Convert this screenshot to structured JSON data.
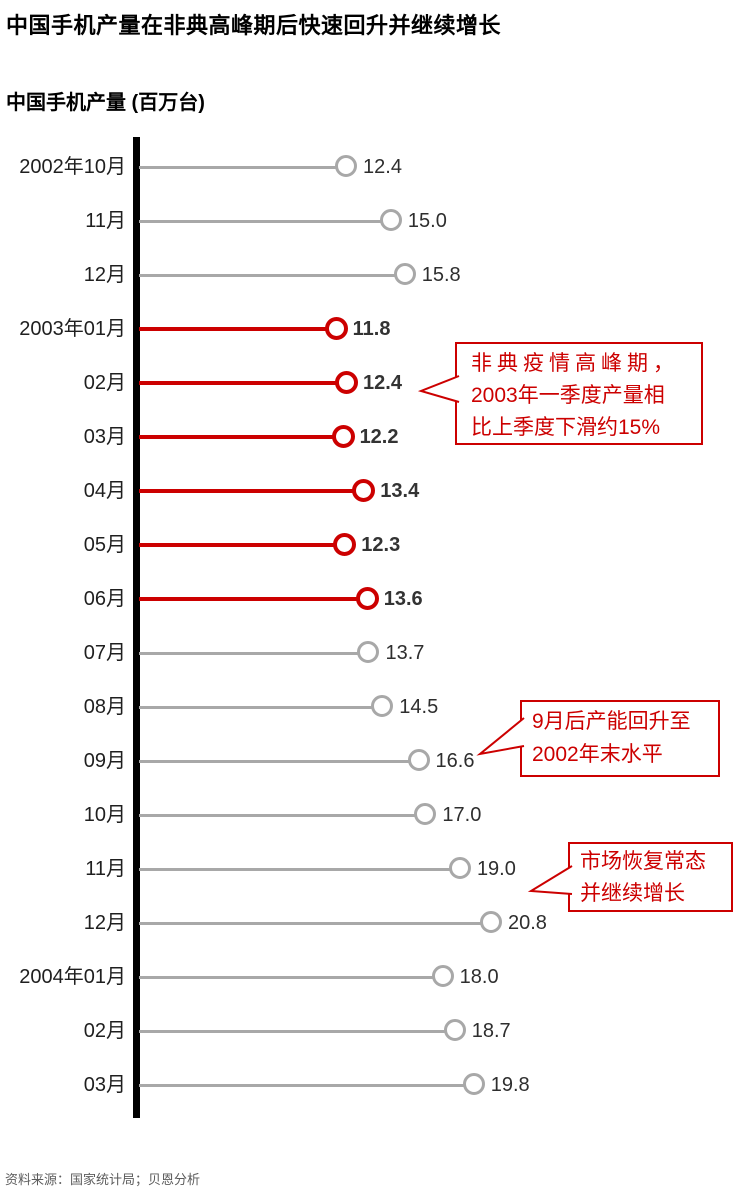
{
  "title": "中国手机产量在非典高峰期后快速回升并继续增长",
  "subtitle": "中国手机产量 (百万台)",
  "source": "资料来源：国家统计局；贝恩分析",
  "colors": {
    "highlight": "#cc0000",
    "normal": "#a8a8a8",
    "axis": "#000000",
    "value_text": "#2e2e2e"
  },
  "annotations": [
    {
      "name": "sars-peak",
      "lines": [
        "非典疫情高峰期，",
        "2003年一季度产量相",
        "比上季度下滑约15%"
      ]
    },
    {
      "name": "capacity-recovery",
      "lines": [
        "9月后产能回升至",
        "2002年末水平"
      ]
    },
    {
      "name": "continued-growth",
      "lines": [
        "市场恢复常态",
        "并继续增长"
      ]
    }
  ],
  "chart_data": {
    "type": "bar",
    "subtype": "horizontal-lollipop",
    "title": "中国手机产量在非典高峰期后快速回升并继续增长",
    "ylabel": "中国手机产量 (百万台)",
    "unit": "百万台",
    "xlim": [
      0,
      22
    ],
    "grid": false,
    "categories": [
      "2002年10月",
      "11月",
      "12月",
      "2003年01月",
      "02月",
      "03月",
      "04月",
      "05月",
      "06月",
      "07月",
      "08月",
      "09月",
      "10月",
      "11月",
      "12月",
      "2004年01月",
      "02月",
      "03月"
    ],
    "values": [
      12.4,
      15.0,
      15.8,
      11.8,
      12.4,
      12.2,
      13.4,
      12.3,
      13.6,
      13.7,
      14.5,
      16.6,
      17.0,
      19.0,
      20.8,
      18.0,
      18.7,
      19.8
    ],
    "highlighted": [
      false,
      false,
      false,
      true,
      true,
      true,
      true,
      true,
      true,
      false,
      false,
      false,
      false,
      false,
      false,
      false,
      false,
      false
    ],
    "highlight_meaning": "非典疫情高峰期 (SARS peak months, red)",
    "annotations": [
      {
        "text": "非典疫情高峰期，2003年一季度产量相比上季度下滑约15%",
        "points_to": "2003年02月 12.4"
      },
      {
        "text": "9月后产能回升至2002年末水平",
        "points_to": "2003年09月 16.6"
      },
      {
        "text": "市场恢复常态并继续增长",
        "points_to": "2003年11月 19.0"
      }
    ]
  }
}
